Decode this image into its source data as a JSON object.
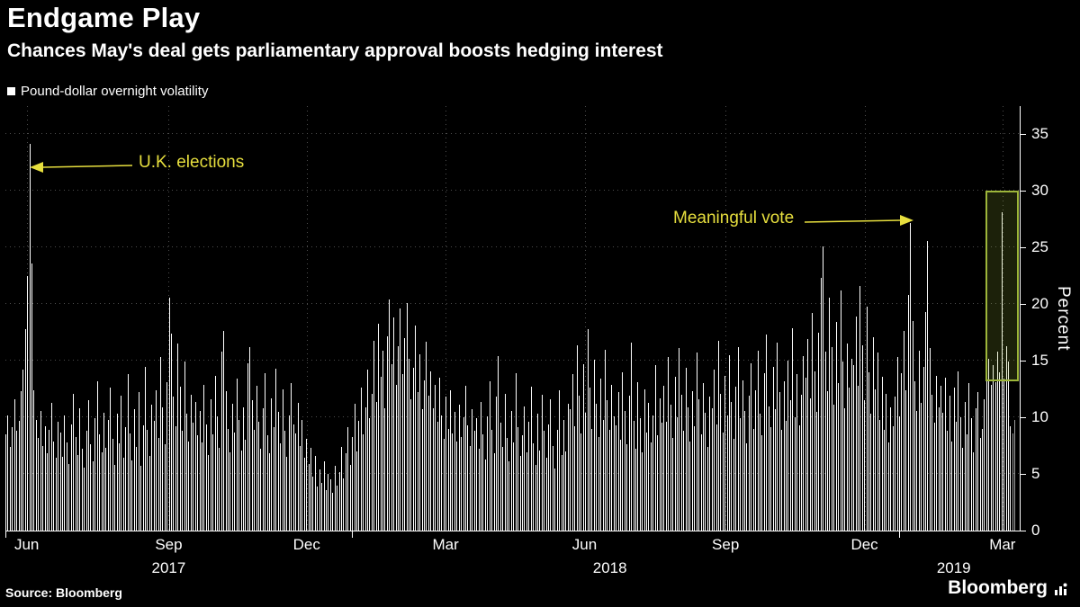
{
  "footer": {
    "source": "Source: Bloomberg",
    "brand": "Bloomberg"
  },
  "chart_data": {
    "type": "bar",
    "title": "Endgame Play",
    "subtitle": "Chances May's deal gets parliamentary approval boosts hedging interest",
    "legend": [
      "Pound-dollar overnight volatility"
    ],
    "series_name": "Pound-dollar overnight volatility",
    "unit": "percent",
    "ylabel": "Percent",
    "ylim": [
      0,
      37.5
    ],
    "y_ticks": [
      0,
      5,
      10,
      15,
      20,
      25,
      30,
      35
    ],
    "x_range": [
      "mid-May 2017",
      "mid-March 2019"
    ],
    "x_ticks": [
      {
        "label": "Jun",
        "pct": 2.1
      },
      {
        "label": "Sep",
        "pct": 16.1
      },
      {
        "label": "Dec",
        "pct": 29.7
      },
      {
        "label": "Mar",
        "pct": 43.4
      },
      {
        "label": "Jun",
        "pct": 57.1
      },
      {
        "label": "Sep",
        "pct": 71.0
      },
      {
        "label": "Dec",
        "pct": 84.7
      },
      {
        "label": "Mar",
        "pct": 98.3
      }
    ],
    "x_year_labels": [
      {
        "label": "2017",
        "pct": 16.1
      },
      {
        "label": "2018",
        "pct": 59.6
      },
      {
        "label": "2019",
        "pct": 93.5
      }
    ],
    "x_year_divider_pcts": [
      0,
      34.2,
      88.1
    ],
    "bar_color": "#ffffff",
    "muted_end_bars": 2,
    "muted_color": "#9e9e9e",
    "grid": true,
    "legend_position": "top-left",
    "annotations": [
      {
        "text": "U.K. elections",
        "target_index": 11,
        "target_value": 34.2
      },
      {
        "text": "Meaningful vote",
        "target_index": 415,
        "target_value": 27.2
      }
    ],
    "annotation_color": "#e7df3e",
    "highlight_box": {
      "border_color": "#9db63a",
      "left_pct": 96.6,
      "width_pct": 2.95,
      "top_value": 30,
      "bottom_value": 13.5
    },
    "values": [
      8.5,
      10.2,
      7.4,
      9.1,
      11.6,
      8.8,
      9.7,
      12.3,
      14.2,
      17.8,
      22.5,
      34.2,
      23.6,
      12.4,
      9.8,
      8.2,
      10.6,
      7.5,
      9.2,
      6.8,
      8.9,
      11.3,
      7.9,
      6.4,
      9.6,
      8.7,
      6.5,
      10.2,
      7.8,
      5.9,
      9.4,
      12.1,
      8.3,
      6.7,
      10.8,
      7.2,
      5.6,
      8.8,
      11.5,
      7.6,
      6.1,
      9.9,
      13.2,
      8.5,
      6.9,
      10.4,
      7.3,
      9.8,
      12.6,
      8.1,
      5.8,
      10.3,
      7.7,
      11.9,
      6.4,
      9.1,
      13.8,
      8.6,
      6.2,
      10.7,
      7.4,
      12.2,
      5.7,
      9.3,
      14.5,
      8.9,
      6.6,
      11.1,
      9.7,
      12.4,
      8.2,
      15.3,
      10.9,
      7.6,
      13.1,
      20.6,
      17.4,
      11.8,
      9.2,
      16.5,
      12.7,
      8.8,
      14.9,
      10.3,
      7.9,
      12.0,
      9.5,
      11.4,
      8.4,
      10.6,
      7.8,
      12.9,
      9.4,
      6.7,
      11.6,
      8.5,
      13.7,
      10.1,
      7.3,
      15.8,
      17.6,
      12.3,
      9.0,
      6.9,
      11.2,
      8.7,
      13.4,
      9.8,
      7.1,
      10.9,
      8.0,
      14.8,
      16.2,
      11.5,
      8.9,
      12.8,
      9.6,
      7.2,
      10.8,
      13.9,
      8.4,
      6.8,
      11.7,
      9.1,
      14.3,
      10.5,
      7.7,
      12.5,
      8.8,
      6.5,
      10.2,
      13.0,
      9.4,
      8.6,
      11.3,
      7.5,
      9.8,
      6.4,
      8.1,
      5.9,
      7.3,
      4.8,
      6.6,
      3.9,
      5.4,
      4.2,
      6.1,
      3.6,
      5.0,
      4.5,
      3.3,
      5.7,
      4.0,
      5.2,
      7.4,
      4.6,
      6.8,
      9.1,
      5.8,
      8.3,
      11.2,
      7.0,
      9.7,
      12.6,
      8.5,
      10.9,
      14.2,
      9.9,
      12.1,
      16.8,
      11.4,
      18.3,
      13.6,
      15.9,
      10.8,
      17.2,
      20.4,
      14.7,
      18.8,
      12.9,
      16.3,
      19.6,
      13.8,
      17.0,
      20.1,
      15.2,
      11.6,
      14.4,
      18.1,
      12.2,
      15.6,
      10.7,
      13.3,
      16.7,
      11.9,
      14.1,
      10.8,
      12.9,
      9.6,
      13.5,
      10.2,
      8.1,
      11.8,
      9.0,
      12.4,
      8.6,
      10.5,
      7.9,
      11.1,
      8.3,
      10.0,
      12.8,
      9.3,
      7.5,
      10.7,
      8.8,
      9.9,
      7.2,
      11.4,
      8.5,
      6.3,
      10.1,
      13.2,
      8.9,
      6.8,
      11.8,
      15.4,
      9.5,
      7.4,
      12.1,
      8.2,
      6.1,
      10.6,
      7.8,
      13.9,
      9.1,
      6.6,
      8.4,
      11.0,
      6.9,
      9.6,
      12.7,
      7.7,
      5.8,
      10.3,
      7.1,
      12.0,
      8.8,
      6.4,
      9.4,
      11.6,
      7.5,
      5.5,
      8.9,
      12.4,
      6.7,
      9.8,
      7.0,
      11.2,
      10.7,
      13.8,
      9.2,
      16.4,
      11.9,
      8.6,
      14.7,
      10.4,
      17.8,
      12.6,
      9.0,
      15.1,
      11.2,
      8.3,
      13.4,
      9.8,
      16.0,
      11.5,
      8.9,
      12.9,
      10.1,
      9.3,
      12.2,
      8.0,
      14.0,
      10.6,
      7.6,
      11.9,
      16.6,
      9.7,
      7.2,
      13.1,
      9.9,
      6.9,
      12.5,
      8.7,
      11.3,
      7.8,
      10.2,
      14.6,
      8.4,
      11.7,
      9.5,
      12.8,
      9.6,
      15.3,
      11.1,
      8.2,
      13.6,
      10.0,
      16.1,
      12.0,
      8.8,
      14.4,
      10.9,
      7.9,
      12.3,
      9.2,
      15.7,
      11.6,
      8.5,
      13.0,
      10.4,
      7.4,
      11.8,
      10.8,
      14.2,
      9.4,
      16.8,
      12.1,
      8.7,
      13.7,
      10.2,
      15.5,
      11.4,
      8.1,
      12.7,
      16.2,
      9.9,
      13.3,
      10.6,
      7.7,
      11.9,
      14.8,
      9.0,
      12.4,
      15.9,
      10.3,
      8.4,
      13.9,
      17.3,
      11.0,
      9.1,
      14.5,
      10.7,
      16.6,
      12.2,
      8.9,
      13.2,
      9.7,
      15.0,
      11.5,
      17.9,
      10.0,
      13.8,
      9.3,
      12.0,
      15.4,
      13.5,
      16.9,
      11.7,
      19.2,
      14.1,
      10.5,
      17.5,
      22.3,
      25.1,
      15.8,
      12.3,
      20.6,
      16.2,
      11.1,
      18.4,
      13.0,
      21.2,
      14.9,
      10.8,
      16.5,
      12.6,
      15.2,
      14.6,
      18.9,
      12.8,
      21.6,
      16.4,
      11.5,
      19.8,
      14.0,
      10.3,
      17.1,
      12.5,
      15.7,
      9.8,
      13.6,
      8.9,
      12.1,
      7.8,
      10.9,
      9.2,
      11.8,
      15.3,
      10.1,
      13.9,
      17.6,
      12.4,
      20.8,
      27.2,
      18.5,
      13.2,
      10.6,
      15.9,
      11.3,
      14.5,
      19.3,
      25.6,
      16.1,
      12.0,
      9.5,
      13.7,
      10.9,
      12.8,
      10.4,
      13.5,
      8.8,
      11.9,
      7.9,
      12.6,
      9.6,
      14.1,
      10.0,
      7.3,
      11.4,
      8.5,
      13.0,
      9.9,
      6.9,
      10.8,
      12.2,
      8.2,
      9.0,
      11.6,
      13.8,
      15.2,
      12.9,
      14.6,
      13.1,
      15.8,
      14.0,
      28.1,
      13.4,
      16.3,
      14.9,
      9.2,
      8.6,
      9.8
    ]
  }
}
